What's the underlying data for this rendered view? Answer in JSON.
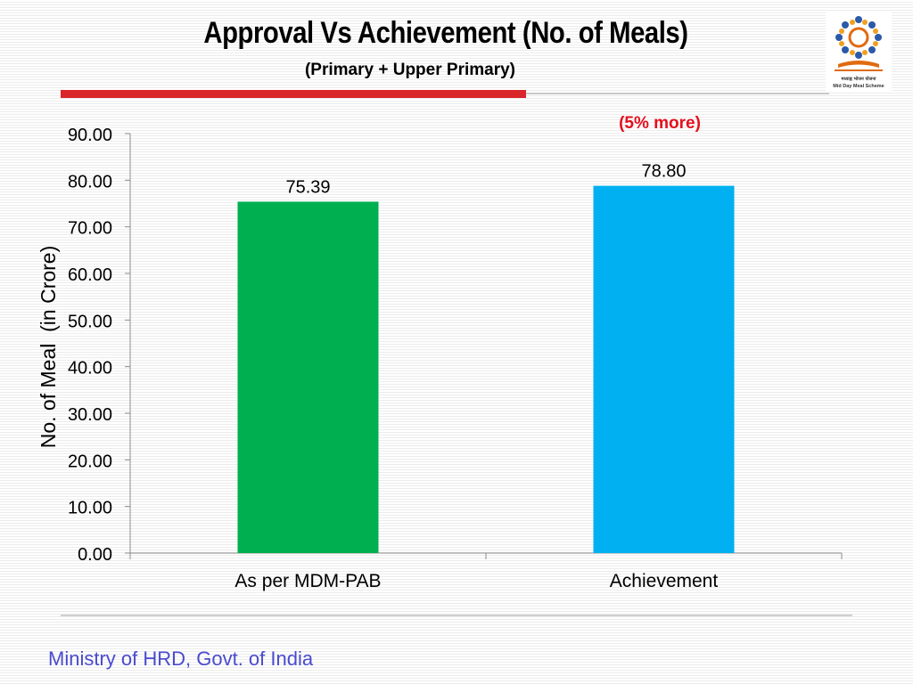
{
  "slide": {
    "title": "Approval Vs Achievement (No. of Meals)",
    "subtitle": "(Primary + Upper Primary)",
    "annotation": "(5% more)",
    "footer": "Ministry of HRD, Govt. of India",
    "logo_caption_hindi": "मध्याह्न भोजन योजना",
    "logo_caption": "Mid Day Meal Scheme"
  },
  "colors": {
    "accent_red": "#d9262b",
    "bar_pab": "#00b050",
    "bar_achievement": "#00b0f0",
    "footer_text": "#4a4acf"
  },
  "chart_data": {
    "type": "bar",
    "title": "",
    "xlabel": "",
    "ylabel": "No. of Meal  (in Crore)",
    "ylim": [
      0,
      90
    ],
    "yticks": [
      "0.00",
      "10.00",
      "20.00",
      "30.00",
      "40.00",
      "50.00",
      "60.00",
      "70.00",
      "80.00",
      "90.00"
    ],
    "categories": [
      "As per MDM-PAB",
      "Achievement"
    ],
    "values": [
      75.39,
      78.8
    ],
    "value_labels": [
      "75.39",
      "78.80"
    ],
    "bar_colors": [
      "#00b050",
      "#00b0f0"
    ],
    "grid": false,
    "legend": "none"
  }
}
